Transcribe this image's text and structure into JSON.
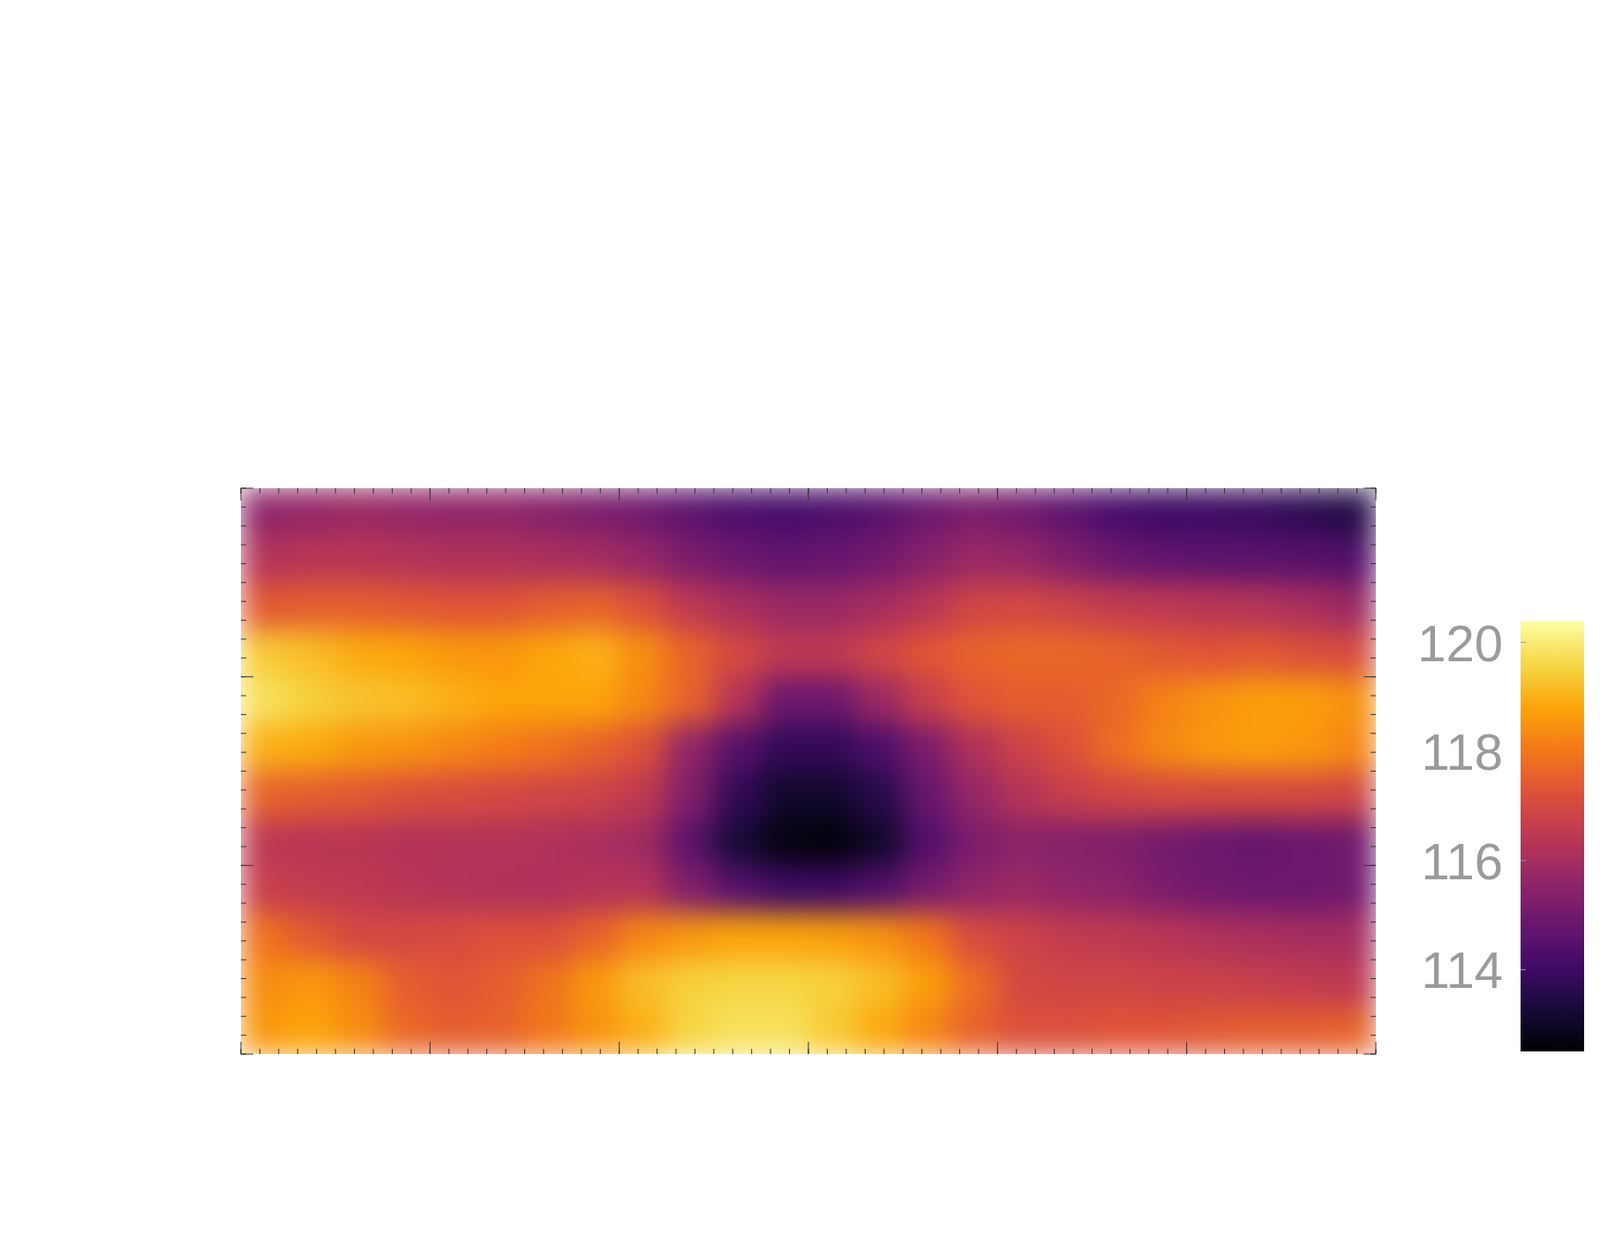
{
  "chart_data": {
    "type": "heatmap",
    "xlim": [
      0,
      60
    ],
    "xticks": [
      0,
      10,
      20,
      30,
      40,
      50,
      60
    ],
    "ylim": [
      0,
      30
    ],
    "yticks": [
      0,
      10,
      20,
      30
    ],
    "tick_labels": false,
    "cells": [
      [
        115.6,
        115.7,
        115.8,
        115.7,
        115.6,
        115.6,
        115.4,
        115.2,
        115,
        114.6,
        114.3,
        114.2,
        114.3,
        114.5,
        114.9,
        115.2,
        115,
        114.6,
        114.2,
        114,
        114,
        113.9,
        113.7,
        113.5
      ],
      [
        116.3,
        116.4,
        116.4,
        116.3,
        116.2,
        116.2,
        116.1,
        116,
        115.7,
        115.2,
        114.9,
        114.7,
        114.8,
        115,
        115.4,
        115.8,
        115.7,
        115.3,
        114.9,
        114.7,
        114.6,
        114.6,
        114.5,
        114.4
      ],
      [
        117.4,
        117.5,
        117.5,
        117.4,
        117.3,
        117.3,
        117.5,
        117.6,
        117.2,
        116.5,
        116.1,
        115.8,
        115.8,
        116,
        116.4,
        116.9,
        117,
        116.8,
        116.6,
        116.5,
        116.4,
        116.3,
        116.1,
        115.8
      ],
      [
        119.4,
        119.2,
        118.9,
        118.8,
        118.6,
        118.6,
        118.8,
        119,
        118.4,
        117.6,
        117,
        116.5,
        116.5,
        116.9,
        117.3,
        117.6,
        117.7,
        117.7,
        117.6,
        117.4,
        117.3,
        117.4,
        117.2,
        117.1
      ],
      [
        119.8,
        119.5,
        119.3,
        119.2,
        119,
        118.8,
        118.8,
        118.8,
        118.3,
        117.6,
        116.3,
        114.9,
        114.9,
        115.8,
        116.7,
        117.3,
        117.5,
        117.5,
        117.7,
        118.2,
        118.5,
        118.7,
        118.7,
        118.5
      ],
      [
        119,
        118.9,
        118.6,
        118.5,
        118.3,
        118.1,
        117.9,
        117.6,
        117.2,
        115.6,
        114.5,
        113.8,
        113.8,
        114.3,
        115.2,
        116.2,
        116.8,
        117.2,
        117.8,
        118.3,
        118.6,
        118.7,
        118.6,
        118.3
      ],
      [
        117.6,
        117.5,
        117.4,
        117.2,
        117.1,
        117,
        116.9,
        116.8,
        116.5,
        115.3,
        113.8,
        113.1,
        113.1,
        113.6,
        114.8,
        115.7,
        116.3,
        116.7,
        116.9,
        117,
        117,
        117,
        117,
        116.9
      ],
      [
        116.5,
        116.4,
        116.4,
        116.3,
        116.3,
        116.3,
        116.2,
        116.1,
        115.9,
        114.6,
        113.3,
        112.7,
        112.6,
        113.1,
        114.4,
        115.2,
        115.5,
        115.4,
        115.3,
        115.1,
        114.9,
        114.8,
        114.9,
        115
      ],
      [
        116.7,
        116.6,
        116.5,
        116.4,
        116.3,
        116.2,
        116.2,
        116.3,
        116.3,
        115.3,
        114.5,
        114,
        114,
        114.4,
        115.1,
        115.6,
        115.8,
        115.6,
        115.5,
        115.2,
        115,
        114.9,
        114.9,
        115
      ],
      [
        117.9,
        117.4,
        117,
        117,
        117.1,
        117.2,
        117.2,
        117.6,
        118.3,
        118.6,
        118.8,
        118.8,
        118.7,
        118.5,
        118,
        117.1,
        116.8,
        116.6,
        116.5,
        116.4,
        116.2,
        116.1,
        116,
        116
      ],
      [
        118.4,
        118.6,
        118.2,
        117.5,
        117.3,
        117.5,
        117.9,
        118.6,
        119.2,
        119.5,
        119.6,
        119.6,
        119.5,
        119.2,
        118.7,
        117.8,
        117,
        116.9,
        116.9,
        116.8,
        116.8,
        116.7,
        116.6,
        116.5
      ],
      [
        118.6,
        118.8,
        118.4,
        117.7,
        117.5,
        117.6,
        118,
        118.5,
        119,
        119.6,
        119.8,
        119.8,
        119.4,
        118.9,
        118.3,
        117.6,
        117.2,
        117.2,
        117.3,
        117.3,
        117.4,
        117.5,
        117.5,
        117.6
      ]
    ],
    "colorbar": {
      "range": [
        112.5,
        120.4
      ],
      "ticks": [
        114,
        116,
        118,
        120
      ]
    }
  }
}
